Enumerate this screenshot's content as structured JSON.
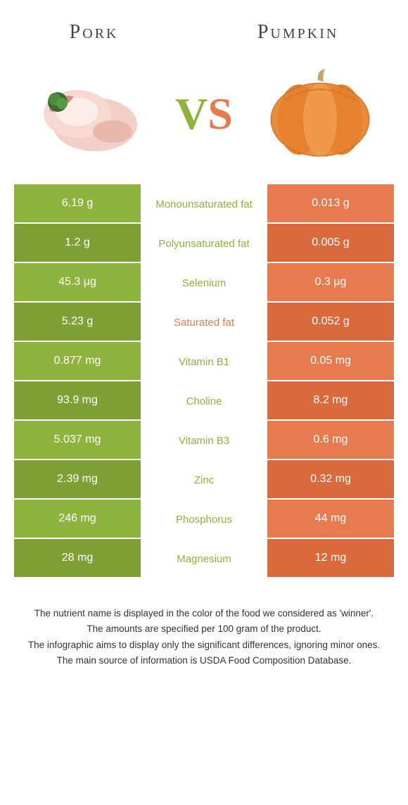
{
  "colors": {
    "left": "#8fb33f",
    "right": "#e77b4f",
    "left_dark": "#7fa035",
    "right_dark": "#d96a3e"
  },
  "header": {
    "left_title": "Pork",
    "right_title": "Pumpkin"
  },
  "vs": {
    "v": "V",
    "s": "S"
  },
  "rows": [
    {
      "left": "6.19 g",
      "label": "Monounsaturated fat",
      "right": "0.013 g",
      "winner": "left"
    },
    {
      "left": "1.2 g",
      "label": "Polyunsaturated fat",
      "right": "0.005 g",
      "winner": "left"
    },
    {
      "left": "45.3 µg",
      "label": "Selenium",
      "right": "0.3 µg",
      "winner": "left"
    },
    {
      "left": "5.23 g",
      "label": "Saturated fat",
      "right": "0.052 g",
      "winner": "right"
    },
    {
      "left": "0.877 mg",
      "label": "Vitamin B1",
      "right": "0.05 mg",
      "winner": "left"
    },
    {
      "left": "93.9 mg",
      "label": "Choline",
      "right": "8.2 mg",
      "winner": "left"
    },
    {
      "left": "5.037 mg",
      "label": "Vitamin B3",
      "right": "0.6 mg",
      "winner": "left"
    },
    {
      "left": "2.39 mg",
      "label": "Zinc",
      "right": "0.32 mg",
      "winner": "left"
    },
    {
      "left": "246 mg",
      "label": "Phosphorus",
      "right": "44 mg",
      "winner": "left"
    },
    {
      "left": "28 mg",
      "label": "Magnesium",
      "right": "12 mg",
      "winner": "left"
    }
  ],
  "footer": [
    "The nutrient name is displayed in the color of the food we considered as 'winner'.",
    "The amounts are specified per 100 gram of the product.",
    "The infographic aims to display only the significant differences, ignoring minor ones.",
    "The main source of information is USDA Food Composition Database."
  ]
}
